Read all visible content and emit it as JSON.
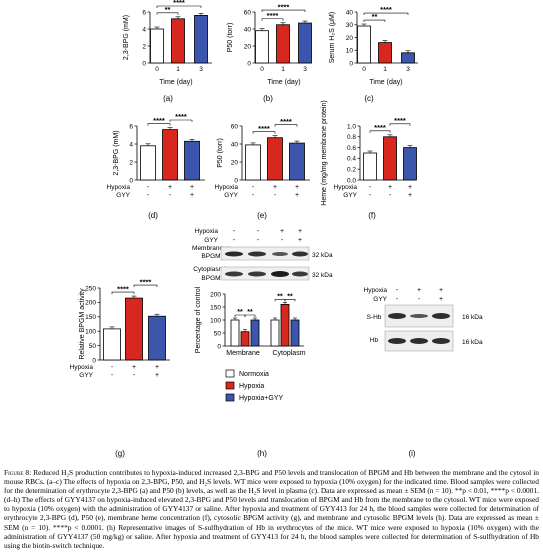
{
  "colors": {
    "normoxia": "#ffffff",
    "hypoxia": "#d7271f",
    "hypoxia_gyy": "#3d56ad",
    "axis": "#000000"
  },
  "chart_data": [
    {
      "type": "bar",
      "panel": "(a)",
      "categories": [
        "0",
        "1",
        "3"
      ],
      "values": [
        4.0,
        5.2,
        5.6
      ],
      "colors": [
        "#ffffff",
        "#d7271f",
        "#3d56ad"
      ],
      "ylabel": "2,3-BPG (mM)",
      "xlabel": "Time (day)",
      "ylim": [
        0,
        6
      ],
      "yticks": [
        "0",
        "2",
        "4",
        "6"
      ],
      "significance": [
        {
          "from": 0,
          "to": 1,
          "label": "**"
        },
        {
          "from": 0,
          "to": 2,
          "label": "****"
        }
      ]
    },
    {
      "type": "bar",
      "panel": "(b)",
      "categories": [
        "0",
        "1",
        "3"
      ],
      "values": [
        38,
        45,
        47
      ],
      "colors": [
        "#ffffff",
        "#d7271f",
        "#3d56ad"
      ],
      "ylabel": "P50 (torr)",
      "xlabel": "Time (day)",
      "ylim": [
        0,
        60
      ],
      "yticks": [
        "0",
        "20",
        "40",
        "60"
      ],
      "significance": [
        {
          "from": 0,
          "to": 1,
          "label": "****"
        },
        {
          "from": 0,
          "to": 2,
          "label": "****"
        }
      ]
    },
    {
      "type": "bar",
      "panel": "(c)",
      "categories": [
        "0",
        "1",
        "3"
      ],
      "values": [
        29,
        16,
        8
      ],
      "colors": [
        "#ffffff",
        "#d7271f",
        "#3d56ad"
      ],
      "ylabel": "Serum H₂S (μM)",
      "xlabel": "Time (day)",
      "ylim": [
        0,
        40
      ],
      "yticks": [
        "0",
        "10",
        "20",
        "30",
        "40"
      ],
      "significance": [
        {
          "from": 0,
          "to": 1,
          "label": "**"
        },
        {
          "from": 0,
          "to": 2,
          "label": "****"
        }
      ]
    },
    {
      "type": "bar",
      "panel": "(d)",
      "categories": [
        "",
        "",
        ""
      ],
      "values": [
        3.8,
        5.6,
        4.3
      ],
      "colors": [
        "#ffffff",
        "#d7271f",
        "#3d56ad"
      ],
      "ylabel": "2,3-BPG (mM)",
      "ylim": [
        0,
        6
      ],
      "yticks": [
        "0",
        "2",
        "4",
        "6"
      ],
      "conditions": [
        {
          "label": "Hypoxia",
          "signs": [
            "-",
            "+",
            "+"
          ]
        },
        {
          "label": "GYY",
          "signs": [
            "-",
            "-",
            "+"
          ]
        }
      ],
      "significance": [
        {
          "from": 0,
          "to": 1,
          "label": "****"
        },
        {
          "from": 1,
          "to": 2,
          "label": "****"
        }
      ]
    },
    {
      "type": "bar",
      "panel": "(e)",
      "categories": [
        "",
        "",
        ""
      ],
      "values": [
        39,
        47,
        41
      ],
      "colors": [
        "#ffffff",
        "#d7271f",
        "#3d56ad"
      ],
      "ylabel": "P50 (torr)",
      "ylim": [
        0,
        60
      ],
      "yticks": [
        "0",
        "20",
        "40",
        "60"
      ],
      "conditions": [
        {
          "label": "Hypoxia",
          "signs": [
            "-",
            "+",
            "+"
          ]
        },
        {
          "label": "GYY",
          "signs": [
            "-",
            "-",
            "+"
          ]
        }
      ],
      "significance": [
        {
          "from": 0,
          "to": 1,
          "label": "****"
        },
        {
          "from": 1,
          "to": 2,
          "label": "****"
        }
      ]
    },
    {
      "type": "bar",
      "panel": "(f)",
      "categories": [
        "",
        "",
        ""
      ],
      "values": [
        0.5,
        0.8,
        0.6
      ],
      "colors": [
        "#ffffff",
        "#d7271f",
        "#3d56ad"
      ],
      "ylabel": "Heme (mg/mg membrane protein)",
      "ylim": [
        0,
        1.0
      ],
      "yticks": [
        "0.0",
        "0.2",
        "0.4",
        "0.6",
        "0.8",
        "1.0"
      ],
      "conditions": [
        {
          "label": "Hypoxia",
          "signs": [
            "-",
            "+",
            "+"
          ]
        },
        {
          "label": "GYY",
          "signs": [
            "-",
            "-",
            "+"
          ]
        }
      ],
      "significance": [
        {
          "from": 0,
          "to": 1,
          "label": "****"
        },
        {
          "from": 1,
          "to": 2,
          "label": "****"
        }
      ]
    },
    {
      "type": "bar",
      "panel": "(g)",
      "categories": [
        "",
        "",
        ""
      ],
      "values": [
        108,
        215,
        152
      ],
      "colors": [
        "#ffffff",
        "#d7271f",
        "#3d56ad"
      ],
      "ylabel": "Relative BPGM activity",
      "ylim": [
        0,
        250
      ],
      "yticks": [
        "0",
        "50",
        "100",
        "150",
        "200",
        "250"
      ],
      "conditions": [
        {
          "label": "Hypoxia",
          "signs": [
            "-",
            "+",
            "+"
          ]
        },
        {
          "label": "GYY",
          "signs": [
            "-",
            "-",
            "+"
          ]
        }
      ],
      "significance": [
        {
          "from": 0,
          "to": 1,
          "label": "****"
        },
        {
          "from": 1,
          "to": 2,
          "label": "****"
        }
      ]
    },
    {
      "type": "bar",
      "panel": "(h)",
      "categories": [
        "Membrane",
        "Cytoplasm"
      ],
      "series": [
        {
          "name": "Normoxia",
          "values": [
            100,
            100
          ],
          "color": "#ffffff"
        },
        {
          "name": "Hypoxia",
          "values": [
            55,
            160
          ],
          "color": "#d7271f"
        },
        {
          "name": "Hypoxia+GYY",
          "values": [
            100,
            100
          ],
          "color": "#3d56ad"
        }
      ],
      "ylabel": "Percentage of control",
      "ylim": [
        0,
        200
      ],
      "yticks": [
        "0",
        "50",
        "100",
        "150",
        "200"
      ],
      "significance": [
        {
          "group": 0,
          "from": 0,
          "to": 1,
          "label": "**"
        },
        {
          "group": 0,
          "from": 1,
          "to": 2,
          "label": "**"
        },
        {
          "group": 1,
          "from": 0,
          "to": 1,
          "label": "**"
        },
        {
          "group": 1,
          "from": 1,
          "to": 2,
          "label": "**"
        }
      ]
    }
  ],
  "panels": [
    "(a)",
    "(b)",
    "(c)",
    "(d)",
    "(e)",
    "(f)",
    "(g)",
    "(h)",
    "(i)"
  ],
  "blot_h": {
    "hypoxia_label": "Hypoxia",
    "gyy_label": "GYY",
    "hypoxia_signs": [
      "-",
      "-",
      "+",
      "+"
    ],
    "gyy_signs": [
      "-",
      "-",
      "-",
      "+"
    ],
    "rows": [
      {
        "label_line1": "Membranous",
        "label_line2": "BPGM",
        "size": "32 kDa"
      },
      {
        "label_line1": "Cytoplasmic",
        "label_line2": "BPGM",
        "size": "32 kDa"
      }
    ]
  },
  "blot_i": {
    "hypoxia_label": "Hypoxia",
    "gyy_label": "GYY",
    "hypoxia_signs": [
      "-",
      "+",
      "+"
    ],
    "gyy_signs": [
      "-",
      "-",
      "+"
    ],
    "rows": [
      {
        "label": "S-Hb",
        "size": "16 kDa"
      },
      {
        "label": "Hb",
        "size": "16 kDa"
      }
    ]
  },
  "legend_h": [
    "Normoxia",
    "Hypoxia",
    "Hypoxia+GYY"
  ],
  "caption": {
    "lead": "Figure 8:",
    "text": "Reduced H₂S production contributes to hypoxia-induced increased 2,3-BPG and P50 levels and translocation of BPGM and Hb between the membrane and the cytosol in mouse RBCs. (a–c) The effects of hypoxia on 2,3-BPG, P50, and H₂S levels. WT mice were exposed to hypoxia (10% oxygen) for the indicated time. Blood samples were collected for the determination of erythrocyte 2,3-BPG (a) and P50 (b) levels, as well as the H₂S level in plasma (c). Data are expressed as mean ± SEM (n = 10). **p < 0.01, ****p < 0.0001. (d–h) The effects of GYY4137 on hypoxia-induced elevated 2,3-BPG and P50 levels and translocation of BPGM and Hb from the membrane to the cytosol. WT mice were exposed to hypoxia (10% oxygen) with the administration of GYY4137 or saline. After hypoxia and treatment of GYY413 for 24 h, the blood samples were collected for determination of erythrocyte 2,3-BPG (d), P50 (e), membrane heme concentration (f), cytosolic BPGM activity (g), and membrane and cytosolic BPGM levels (h). Data are expressed as mean ± SEM (n = 10). ****p < 0.0001. (h) Representative images of S-sulfhydration of Hb in erythrocytes of the mice. WT mice were exposed to hypoxia (10% oxygen) with the administration of GYY4137 (50 mg/kg) or saline. After hypoxia and treatment of GYY413 for 24 h, the blood samples were collected for determination of S-sulfhydration of Hb using the biotin-switch technique."
  }
}
